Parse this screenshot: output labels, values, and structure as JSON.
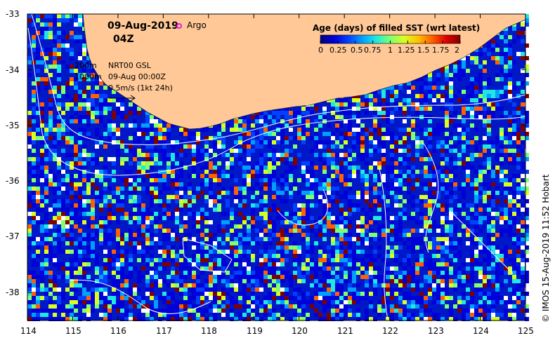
{
  "header": {
    "date": "09-Aug-2019",
    "time": "04Z",
    "argo_label": "Argo",
    "argo_color": "#e020e0"
  },
  "annotations": {
    "depth_200": "200m",
    "depth_1000": "1000m",
    "source": "NRT00 GSL",
    "analysis_time": "09-Aug 00:00Z",
    "velocity_scale": "0.5m/s (1kt 24h)"
  },
  "colorbar": {
    "title": "Age (days) of filled SST (wrt latest)",
    "ticks": [
      "0",
      "0.25",
      "0.5",
      "0.75",
      "1",
      "1.25",
      "1.5",
      "1.75",
      "2"
    ],
    "colors": [
      "#00007f",
      "#0000d8",
      "#0040ff",
      "#00a0ff",
      "#20e8e0",
      "#80ff70",
      "#d8ff20",
      "#ffc000",
      "#ff6000",
      "#e00000",
      "#800000"
    ]
  },
  "axes": {
    "lon_ticks": [
      "114",
      "115",
      "116",
      "117",
      "118",
      "119",
      "120",
      "121",
      "122",
      "123",
      "124",
      "125"
    ],
    "lat_ticks": [
      "-33",
      "-34",
      "-35",
      "-36",
      "-37",
      "-38"
    ],
    "lon_range": [
      114,
      125
    ],
    "lat_range": [
      -33,
      -38.5
    ]
  },
  "land_color": "#ffc896",
  "credit": "© IMOS 15-Aug-2019 11:52 Hobart"
}
